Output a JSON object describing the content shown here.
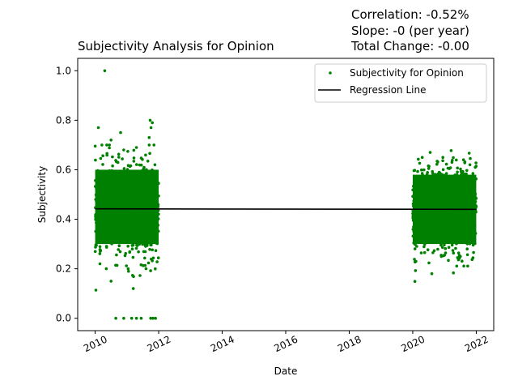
{
  "chart_data": {
    "type": "scatter",
    "title": "Subjectivity Analysis for Opinion",
    "xlabel": "Date",
    "ylabel": "Subjectivity",
    "xlim": [
      2009.45,
      2022.55
    ],
    "ylim": [
      -0.05,
      1.05
    ],
    "x_ticks": [
      {
        "value": 2010,
        "label": "2010"
      },
      {
        "value": 2012,
        "label": "2012"
      },
      {
        "value": 2014,
        "label": "2014"
      },
      {
        "value": 2016,
        "label": "2016"
      },
      {
        "value": 2018,
        "label": "2018"
      },
      {
        "value": 2020,
        "label": "2020"
      },
      {
        "value": 2022,
        "label": "2022"
      }
    ],
    "y_ticks": [
      {
        "value": 0.0,
        "label": "0.0"
      },
      {
        "value": 0.2,
        "label": "0.2"
      },
      {
        "value": 0.4,
        "label": "0.4"
      },
      {
        "value": 0.6,
        "label": "0.6"
      },
      {
        "value": 0.8,
        "label": "0.8"
      },
      {
        "value": 1.0,
        "label": "1.0"
      }
    ],
    "grid": false,
    "legend_position": "top-right",
    "series": [
      {
        "name": "Subjectivity for Opinion",
        "kind": "scatter",
        "color": "#008000",
        "clusters": [
          {
            "x_range": [
              2010.0,
              2012.0
            ],
            "y_core_range": [
              0.3,
              0.6
            ],
            "y_mean": 0.44
          },
          {
            "x_range": [
              2020.0,
              2022.0
            ],
            "y_core_range": [
              0.3,
              0.58
            ],
            "y_mean": 0.44
          }
        ],
        "points": [
          {
            "x": 2010.3,
            "y": 1.0
          },
          {
            "x": 2010.1,
            "y": 0.77
          },
          {
            "x": 2010.8,
            "y": 0.75
          },
          {
            "x": 2011.73,
            "y": 0.8
          },
          {
            "x": 2011.8,
            "y": 0.79
          },
          {
            "x": 2011.76,
            "y": 0.77
          },
          {
            "x": 2010.5,
            "y": 0.72
          },
          {
            "x": 2010.45,
            "y": 0.7
          },
          {
            "x": 2011.7,
            "y": 0.73
          },
          {
            "x": 2010.9,
            "y": 0.68
          },
          {
            "x": 2011.3,
            "y": 0.69
          },
          {
            "x": 2010.15,
            "y": 0.22
          },
          {
            "x": 2010.5,
            "y": 0.15
          },
          {
            "x": 2011.2,
            "y": 0.12
          },
          {
            "x": 2011.05,
            "y": 0.19
          },
          {
            "x": 2010.35,
            "y": 0.2
          },
          {
            "x": 2011.6,
            "y": 0.2
          },
          {
            "x": 2010.65,
            "y": 0.0
          },
          {
            "x": 2010.9,
            "y": 0.0
          },
          {
            "x": 2011.15,
            "y": 0.0
          },
          {
            "x": 2011.3,
            "y": 0.0
          },
          {
            "x": 2011.45,
            "y": 0.0
          },
          {
            "x": 2011.75,
            "y": 0.0
          },
          {
            "x": 2011.82,
            "y": 0.0
          },
          {
            "x": 2011.9,
            "y": 0.0
          },
          {
            "x": 2020.55,
            "y": 0.67
          },
          {
            "x": 2020.3,
            "y": 0.65
          },
          {
            "x": 2020.95,
            "y": 0.65
          },
          {
            "x": 2021.6,
            "y": 0.64
          },
          {
            "x": 2021.8,
            "y": 0.62
          },
          {
            "x": 2020.6,
            "y": 0.18
          },
          {
            "x": 2020.1,
            "y": 0.23
          },
          {
            "x": 2021.5,
            "y": 0.25
          },
          {
            "x": 2020.9,
            "y": 0.25
          }
        ]
      },
      {
        "name": "Regression Line",
        "kind": "line",
        "color": "#000000",
        "x": [
          2010.0,
          2022.0
        ],
        "y": [
          0.442,
          0.44
        ]
      }
    ],
    "annotations": [
      "Correlation: -0.52%",
      "Slope: -0 (per year)",
      "Total Change: -0.00"
    ]
  }
}
